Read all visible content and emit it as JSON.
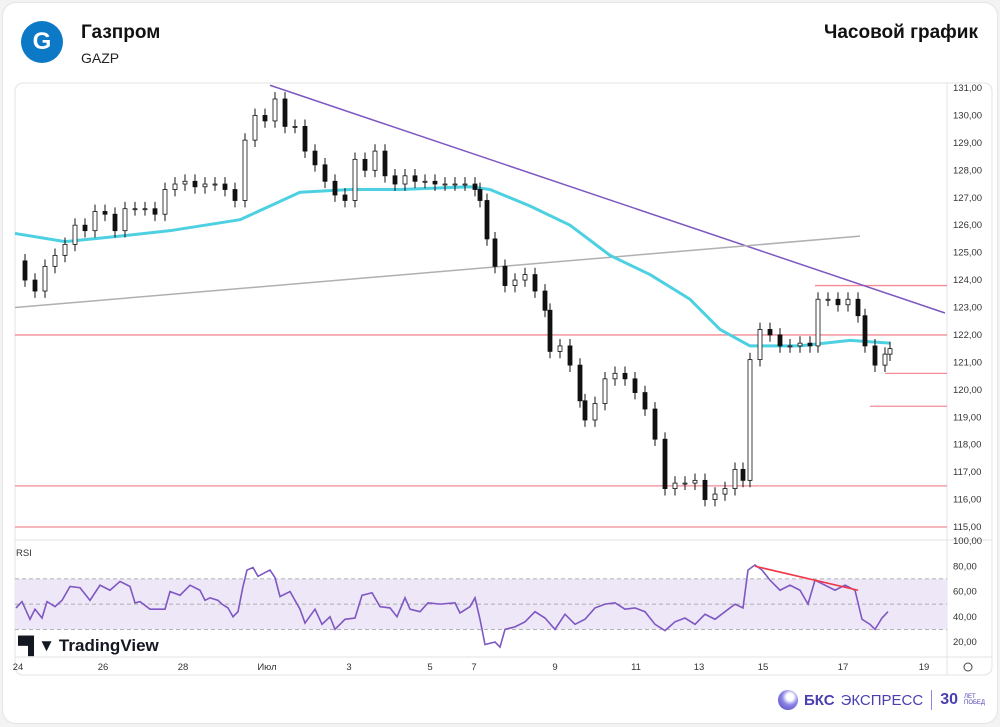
{
  "header": {
    "company": "Газпром",
    "ticker": "GAZP",
    "chart_title": "Часовой график",
    "logo_letter": "G"
  },
  "rsi_label": "RSI",
  "watermark": "TradingView",
  "brand": {
    "name_bold": "БКС",
    "name": "ЭКСПРЕСС",
    "years": "30",
    "years_caption": "ЛЕТ ПОБЕД"
  },
  "colors": {
    "up": "#ffffff",
    "down": "#111111",
    "ema": "#4dd0e1",
    "trend_purple": "#7e57c2",
    "trend_gray": "#b0b0b0",
    "level": "#f28b95",
    "rsi": "#7e57c2",
    "rsi_band": "#ede7f8",
    "divergence": "#f23645"
  },
  "chart_data": {
    "type": "candlestick",
    "title": "Газпром GAZP — Часовой график",
    "price_axis": {
      "ylim": [
        115,
        131
      ],
      "ticks": [
        "131,00",
        "130,00",
        "129,00",
        "128,00",
        "127,00",
        "126,00",
        "125,00",
        "124,00",
        "123,00",
        "122,00",
        "121,00",
        "120,00",
        "119,00",
        "118,00",
        "117,00",
        "116,00",
        "115,00"
      ]
    },
    "x_axis": {
      "range": [
        0,
        186
      ],
      "ticks": [
        {
          "t": 0.6,
          "label": "24"
        },
        {
          "t": 17.6,
          "label": "26"
        },
        {
          "t": 33.6,
          "label": "28"
        },
        {
          "t": 50.4,
          "label": "Июл"
        },
        {
          "t": 66.8,
          "label": "3"
        },
        {
          "t": 83,
          "label": "5"
        },
        {
          "t": 91.8,
          "label": "7"
        },
        {
          "t": 108,
          "label": "9"
        },
        {
          "t": 124.2,
          "label": "11"
        },
        {
          "t": 136.8,
          "label": "13"
        },
        {
          "t": 149.6,
          "label": "15"
        },
        {
          "t": 165.6,
          "label": "17"
        },
        {
          "t": 181.8,
          "label": "19"
        }
      ]
    },
    "closes": [
      [
        0,
        124.7
      ],
      [
        2,
        124.0
      ],
      [
        4,
        123.6
      ],
      [
        6,
        124.5
      ],
      [
        8,
        124.9
      ],
      [
        10,
        125.3
      ],
      [
        12,
        126.0
      ],
      [
        14,
        125.8
      ],
      [
        16,
        126.5
      ],
      [
        18,
        126.4
      ],
      [
        20,
        125.8
      ],
      [
        22,
        126.6
      ],
      [
        24,
        126.6
      ],
      [
        26,
        126.6
      ],
      [
        28,
        126.4
      ],
      [
        30,
        127.3
      ],
      [
        32,
        127.5
      ],
      [
        34,
        127.6
      ],
      [
        36,
        127.4
      ],
      [
        38,
        127.5
      ],
      [
        40,
        127.5
      ],
      [
        42,
        127.3
      ],
      [
        44,
        126.9
      ],
      [
        46,
        129.1
      ],
      [
        48,
        130.0
      ],
      [
        50,
        129.8
      ],
      [
        52,
        130.6
      ],
      [
        54,
        129.6
      ],
      [
        56,
        129.6
      ],
      [
        58,
        128.7
      ],
      [
        60,
        128.2
      ],
      [
        62,
        127.6
      ],
      [
        64,
        127.1
      ],
      [
        66,
        126.9
      ],
      [
        68,
        128.4
      ],
      [
        70,
        128.0
      ],
      [
        72,
        128.7
      ],
      [
        74,
        127.8
      ],
      [
        76,
        127.5
      ],
      [
        78,
        127.8
      ],
      [
        80,
        127.6
      ],
      [
        82,
        127.6
      ],
      [
        84,
        127.5
      ],
      [
        86,
        127.5
      ],
      [
        88,
        127.5
      ],
      [
        90,
        127.5
      ],
      [
        92,
        127.3
      ],
      [
        93,
        126.9
      ],
      [
        94.4,
        125.5
      ],
      [
        96,
        124.5
      ],
      [
        98,
        123.8
      ],
      [
        100,
        124.0
      ],
      [
        102,
        124.2
      ],
      [
        104,
        123.6
      ],
      [
        106,
        122.9
      ],
      [
        107,
        121.4
      ],
      [
        109,
        121.6
      ],
      [
        111,
        120.9
      ],
      [
        113,
        119.6
      ],
      [
        114,
        118.9
      ],
      [
        116,
        119.5
      ],
      [
        118,
        120.4
      ],
      [
        120,
        120.6
      ],
      [
        122,
        120.4
      ],
      [
        124,
        119.9
      ],
      [
        126,
        119.3
      ],
      [
        128,
        118.2
      ],
      [
        130,
        116.4
      ],
      [
        132,
        116.6
      ],
      [
        134,
        116.6
      ],
      [
        136,
        116.7
      ],
      [
        138,
        116.0
      ],
      [
        140,
        116.2
      ],
      [
        142,
        116.4
      ],
      [
        144,
        117.1
      ],
      [
        145.6,
        116.7
      ],
      [
        147,
        121.1
      ],
      [
        149,
        122.2
      ],
      [
        151,
        122.0
      ],
      [
        153,
        121.6
      ],
      [
        155,
        121.6
      ],
      [
        157,
        121.7
      ],
      [
        159,
        121.6
      ],
      [
        160.6,
        123.3
      ],
      [
        162.6,
        123.3
      ],
      [
        164.6,
        123.1
      ],
      [
        166.6,
        123.3
      ],
      [
        168.6,
        122.7
      ],
      [
        170,
        121.6
      ],
      [
        172,
        120.9
      ],
      [
        174,
        121.3
      ],
      [
        175,
        121.5
      ]
    ],
    "ema": {
      "points": [
        [
          0,
          125.7
        ],
        [
          10,
          125.4
        ],
        [
          21,
          125.6
        ],
        [
          31,
          125.8
        ],
        [
          45,
          126.2
        ],
        [
          51,
          126.7
        ],
        [
          57,
          127.2
        ],
        [
          67,
          127.3
        ],
        [
          77,
          127.3
        ],
        [
          91,
          127.4
        ],
        [
          95,
          127.3
        ],
        [
          103,
          126.7
        ],
        [
          111,
          126.0
        ],
        [
          119,
          124.9
        ],
        [
          127,
          124.2
        ],
        [
          135,
          123.3
        ],
        [
          141,
          122.2
        ],
        [
          147,
          121.6
        ],
        [
          157,
          121.6
        ],
        [
          167,
          121.8
        ],
        [
          175,
          121.7
        ]
      ]
    },
    "trendlines": [
      {
        "name": "descending",
        "from": [
          51,
          131.1
        ],
        "to": [
          186,
          122.8
        ]
      },
      {
        "name": "ascending",
        "from": [
          0,
          123.0
        ],
        "to": [
          169,
          125.6
        ]
      }
    ],
    "levels": [
      {
        "price": 122.0,
        "from": 0
      },
      {
        "price": 116.5,
        "from": 0
      },
      {
        "price": 115.0,
        "from": 0
      },
      {
        "price": 123.8,
        "from": 160
      },
      {
        "price": 120.6,
        "from": 174
      },
      {
        "price": 119.4,
        "from": 171
      }
    ],
    "rsi": {
      "ylim": [
        10,
        100
      ],
      "ticks": [
        "100,00",
        "80,00",
        "60,00",
        "40,00",
        "20,00"
      ],
      "bands": [
        30,
        50,
        70
      ],
      "values": [
        [
          0.2,
          47
        ],
        [
          1.4,
          52
        ],
        [
          3,
          38
        ],
        [
          4,
          46
        ],
        [
          5.4,
          39
        ],
        [
          6.4,
          52
        ],
        [
          8,
          48
        ],
        [
          9.4,
          53
        ],
        [
          11,
          64
        ],
        [
          13,
          63
        ],
        [
          15,
          53
        ],
        [
          17,
          65
        ],
        [
          19,
          61
        ],
        [
          21,
          68
        ],
        [
          23,
          64
        ],
        [
          24,
          51
        ],
        [
          25,
          52
        ],
        [
          27,
          46
        ],
        [
          30,
          46
        ],
        [
          31,
          60
        ],
        [
          33,
          57
        ],
        [
          35,
          65
        ],
        [
          37,
          61
        ],
        [
          38,
          53
        ],
        [
          39,
          55
        ],
        [
          40.6,
          53
        ],
        [
          41.4,
          50
        ],
        [
          42.6,
          47
        ],
        [
          43.6,
          40
        ],
        [
          44.6,
          44
        ],
        [
          45.6,
          64
        ],
        [
          46.4,
          77
        ],
        [
          47.6,
          79
        ],
        [
          48.6,
          72
        ],
        [
          50,
          75
        ],
        [
          51,
          77
        ],
        [
          52,
          71
        ],
        [
          53,
          56
        ],
        [
          55,
          60
        ],
        [
          57,
          46
        ],
        [
          58,
          35
        ],
        [
          60,
          46
        ],
        [
          61.4,
          34
        ],
        [
          63,
          40
        ],
        [
          64,
          30
        ],
        [
          66,
          38
        ],
        [
          68,
          39
        ],
        [
          69.4,
          57
        ],
        [
          71.4,
          59
        ],
        [
          73,
          48
        ],
        [
          75,
          47
        ],
        [
          76.4,
          40
        ],
        [
          78,
          55
        ],
        [
          79,
          46
        ],
        [
          81,
          44
        ],
        [
          82.6,
          51
        ],
        [
          85,
          50
        ],
        [
          88,
          51
        ],
        [
          89,
          43
        ],
        [
          91,
          48
        ],
        [
          92,
          55
        ],
        [
          93,
          38
        ],
        [
          94,
          18
        ],
        [
          96,
          20
        ],
        [
          97,
          16
        ],
        [
          98,
          30
        ],
        [
          100,
          32
        ],
        [
          102,
          36
        ],
        [
          104,
          44
        ],
        [
          106,
          39
        ],
        [
          108,
          30
        ],
        [
          110,
          42
        ],
        [
          112,
          34
        ],
        [
          114,
          38
        ],
        [
          116,
          47
        ],
        [
          118,
          50
        ],
        [
          120,
          51
        ],
        [
          122,
          46
        ],
        [
          124,
          47
        ],
        [
          126,
          44
        ],
        [
          128,
          34
        ],
        [
          130,
          29
        ],
        [
          132,
          36
        ],
        [
          134,
          39
        ],
        [
          136,
          34
        ],
        [
          138,
          42
        ],
        [
          140,
          38
        ],
        [
          142,
          44
        ],
        [
          144,
          50
        ],
        [
          145.6,
          47
        ],
        [
          146.6,
          77
        ],
        [
          148,
          81
        ],
        [
          149.4,
          77
        ],
        [
          151,
          69
        ],
        [
          153,
          61
        ],
        [
          155,
          65
        ],
        [
          157,
          61
        ],
        [
          158.6,
          50
        ],
        [
          160,
          69
        ],
        [
          162,
          65
        ],
        [
          164,
          61
        ],
        [
          166,
          65
        ],
        [
          168,
          61
        ],
        [
          169.4,
          38
        ],
        [
          171,
          34
        ],
        [
          172,
          30
        ],
        [
          173.4,
          39
        ],
        [
          174.6,
          44
        ]
      ],
      "divergence": {
        "from": [
          148,
          80
        ],
        "to": [
          168.6,
          61
        ]
      }
    }
  }
}
